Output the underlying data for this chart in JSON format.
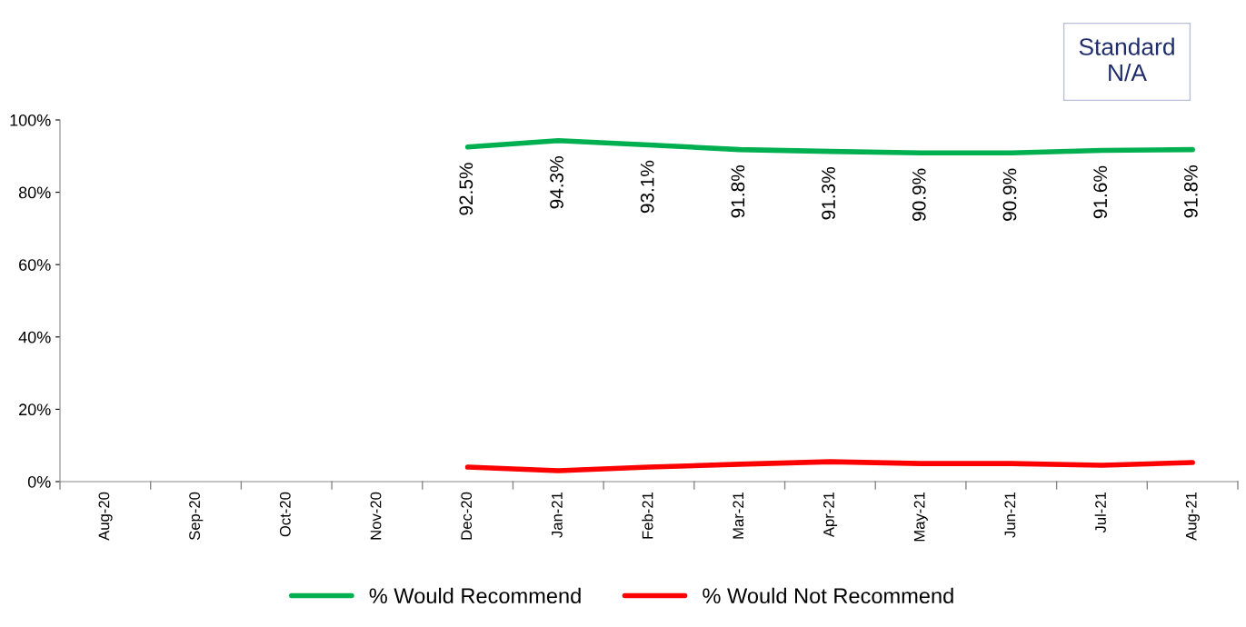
{
  "chart_data": {
    "type": "line",
    "categories": [
      "Aug-20",
      "Sep-20",
      "Oct-20",
      "Nov-20",
      "Dec-20",
      "Jan-21",
      "Feb-21",
      "Mar-21",
      "Apr-21",
      "May-21",
      "Jun-21",
      "Jul-21",
      "Aug-21"
    ],
    "series": [
      {
        "name": "% Would Recommend",
        "color": "#00b050",
        "values": [
          null,
          null,
          null,
          null,
          92.5,
          94.3,
          93.1,
          91.8,
          91.3,
          90.9,
          90.9,
          91.6,
          91.8
        ],
        "value_labels": [
          null,
          null,
          null,
          null,
          "92.5%",
          "94.3%",
          "93.1%",
          "91.8%",
          "91.3%",
          "90.9%",
          "90.9%",
          "91.6%",
          "91.8%"
        ]
      },
      {
        "name": "% Would Not Recommend",
        "color": "#ff0000",
        "values": [
          null,
          null,
          null,
          null,
          4.0,
          3.0,
          4.0,
          4.8,
          5.5,
          5.0,
          5.0,
          4.5,
          5.3
        ]
      }
    ],
    "ylim": [
      0,
      100
    ],
    "yticks": [
      {
        "value": 0,
        "label": "0%"
      },
      {
        "value": 20,
        "label": "20%"
      },
      {
        "value": 40,
        "label": "40%"
      },
      {
        "value": 60,
        "label": "60%"
      },
      {
        "value": 80,
        "label": "80%"
      },
      {
        "value": 100,
        "label": "100%"
      }
    ],
    "annotations": [
      "Standard\nN/A"
    ],
    "grid": false,
    "legend": "bottom",
    "marker": "none",
    "line_style": "solid"
  }
}
